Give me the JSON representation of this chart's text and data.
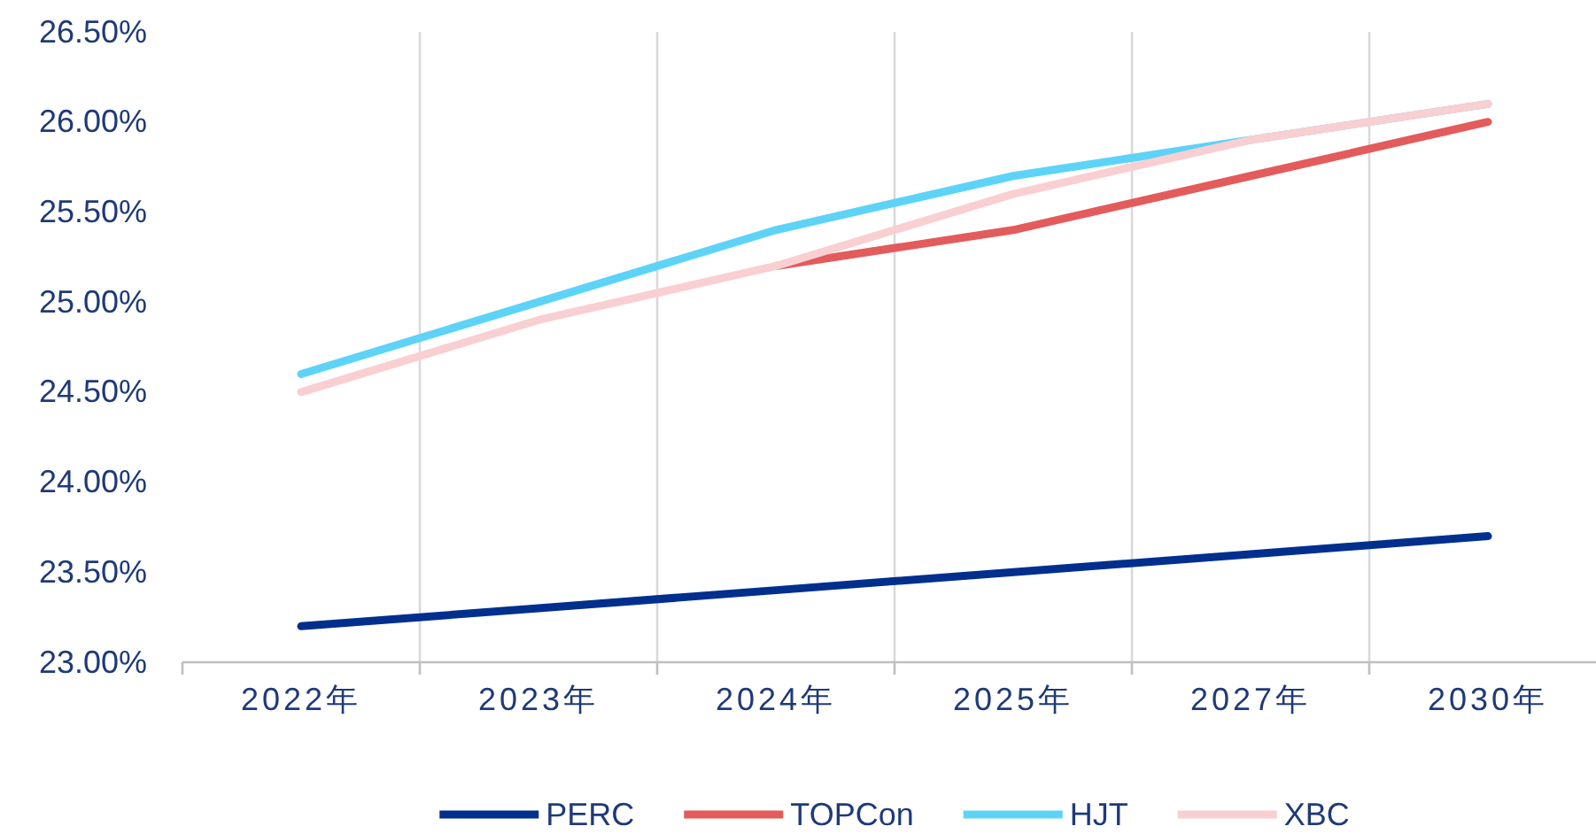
{
  "chart_data": {
    "type": "line",
    "categories": [
      "2022年",
      "2023年",
      "2024年",
      "2025年",
      "2027年",
      "2030年"
    ],
    "series": [
      {
        "name": "PERC",
        "color": "#002f8e",
        "values": [
          23.2,
          23.3,
          23.4,
          23.5,
          23.6,
          23.7
        ]
      },
      {
        "name": "TOPCon",
        "color": "#e35b5b",
        "values": [
          null,
          null,
          25.2,
          25.4,
          25.7,
          26.0
        ]
      },
      {
        "name": "HJT",
        "color": "#5dd3f8",
        "values": [
          24.6,
          25.0,
          25.4,
          25.7,
          25.9,
          26.1
        ]
      },
      {
        "name": "XBC",
        "color": "#f9cfd2",
        "values": [
          24.5,
          24.9,
          25.2,
          25.6,
          25.9,
          26.1
        ]
      }
    ],
    "ylim": [
      23,
      26.5
    ],
    "yticks": [
      {
        "value": 23,
        "label": "23.00%"
      },
      {
        "value": 23.5,
        "label": "23.50%"
      },
      {
        "value": 24,
        "label": "24.00%"
      },
      {
        "value": 24.5,
        "label": "24.50%"
      },
      {
        "value": 25,
        "label": "25.00%"
      },
      {
        "value": 25.5,
        "label": "25.50%"
      },
      {
        "value": 26,
        "label": "26.00%"
      },
      {
        "value": 26.5,
        "label": "26.50%"
      }
    ],
    "grid": "x",
    "legend": "bottom",
    "marker": "none",
    "line_style": "solid"
  }
}
